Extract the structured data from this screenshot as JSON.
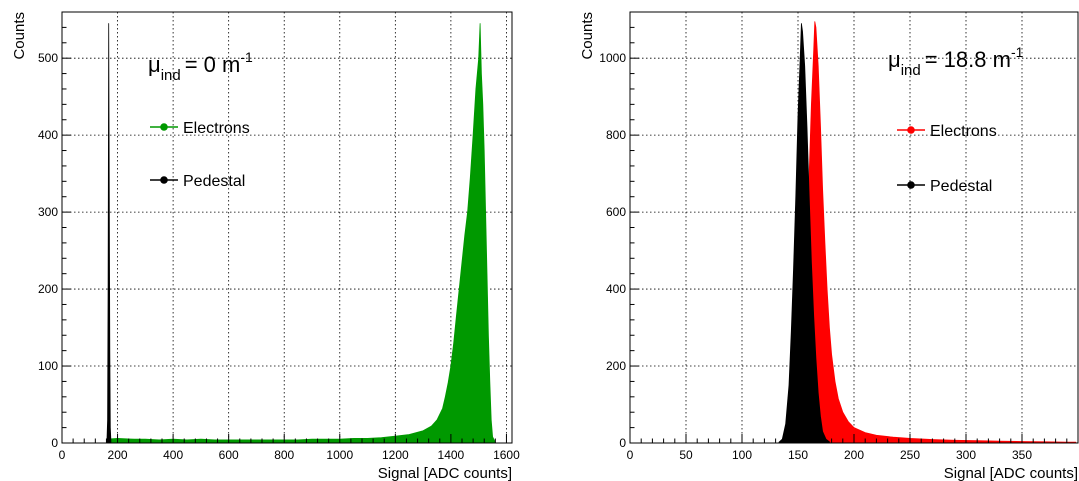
{
  "chart_data": [
    {
      "type": "histogram",
      "xlabel": "Signal [ADC counts]",
      "ylabel": "Counts",
      "xlim": [
        0,
        1620
      ],
      "ylim": [
        0,
        560
      ],
      "xticks": [
        0,
        200,
        400,
        600,
        800,
        1000,
        1200,
        1400,
        1600
      ],
      "yticks": [
        0,
        100,
        200,
        300,
        400,
        500
      ],
      "grid": true,
      "annotation": {
        "symbol": "μ",
        "subscript": "ind",
        "value": "= 0 m",
        "superscript": "-1"
      },
      "legend_position": "upper-center",
      "series": [
        {
          "name": "Electrons",
          "color": "#009900",
          "points": [
            [
              160,
              5
            ],
            [
              200,
              6
            ],
            [
              260,
              5
            ],
            [
              300,
              5
            ],
            [
              350,
              4
            ],
            [
              400,
              5
            ],
            [
              450,
              4
            ],
            [
              500,
              5
            ],
            [
              550,
              4
            ],
            [
              600,
              4
            ],
            [
              650,
              4
            ],
            [
              700,
              4
            ],
            [
              750,
              4
            ],
            [
              800,
              4
            ],
            [
              850,
              4
            ],
            [
              900,
              5
            ],
            [
              950,
              5
            ],
            [
              1000,
              5
            ],
            [
              1050,
              6
            ],
            [
              1100,
              6
            ],
            [
              1150,
              7
            ],
            [
              1200,
              9
            ],
            [
              1250,
              11
            ],
            [
              1300,
              16
            ],
            [
              1330,
              22
            ],
            [
              1350,
              30
            ],
            [
              1370,
              45
            ],
            [
              1380,
              60
            ],
            [
              1390,
              78
            ],
            [
              1400,
              100
            ],
            [
              1410,
              130
            ],
            [
              1420,
              165
            ],
            [
              1430,
              200
            ],
            [
              1440,
              235
            ],
            [
              1450,
              270
            ],
            [
              1460,
              300
            ],
            [
              1470,
              345
            ],
            [
              1480,
              400
            ],
            [
              1490,
              460
            ],
            [
              1500,
              500
            ],
            [
              1505,
              545
            ],
            [
              1510,
              480
            ],
            [
              1515,
              440
            ],
            [
              1520,
              380
            ],
            [
              1525,
              300
            ],
            [
              1530,
              220
            ],
            [
              1535,
              140
            ],
            [
              1540,
              80
            ],
            [
              1545,
              30
            ],
            [
              1550,
              8
            ],
            [
              1560,
              1
            ]
          ]
        },
        {
          "name": "Pedestal",
          "color": "#000000",
          "points": [
            [
              162,
              5
            ],
            [
              164,
              30
            ],
            [
              166,
              200
            ],
            [
              168,
              545
            ],
            [
              170,
              350
            ],
            [
              172,
              120
            ],
            [
              174,
              20
            ],
            [
              176,
              3
            ]
          ]
        }
      ]
    },
    {
      "type": "histogram",
      "xlabel": "Signal [ADC counts]",
      "ylabel": "Counts",
      "xlim": [
        0,
        400
      ],
      "ylim": [
        0,
        1120
      ],
      "xticks": [
        0,
        50,
        100,
        150,
        200,
        250,
        300,
        350
      ],
      "yticks": [
        0,
        200,
        400,
        600,
        800,
        1000
      ],
      "grid": true,
      "annotation": {
        "symbol": "μ",
        "subscript": "ind",
        "value": "= 18.8 m",
        "superscript": "-1"
      },
      "legend_position": "upper-right",
      "series": [
        {
          "name": "Electrons",
          "color": "#ff0000",
          "points": [
            [
              138,
              2
            ],
            [
              142,
              8
            ],
            [
              146,
              25
            ],
            [
              150,
              70
            ],
            [
              153,
              160
            ],
            [
              156,
              330
            ],
            [
              158,
              520
            ],
            [
              160,
              700
            ],
            [
              162,
              880
            ],
            [
              164,
              1020
            ],
            [
              165,
              1095
            ],
            [
              166,
              1080
            ],
            [
              168,
              980
            ],
            [
              170,
              830
            ],
            [
              172,
              660
            ],
            [
              174,
              520
            ],
            [
              176,
              400
            ],
            [
              178,
              300
            ],
            [
              180,
              230
            ],
            [
              183,
              160
            ],
            [
              186,
              115
            ],
            [
              190,
              80
            ],
            [
              195,
              55
            ],
            [
              200,
              40
            ],
            [
              210,
              27
            ],
            [
              220,
              20
            ],
            [
              235,
              15
            ],
            [
              250,
              12
            ],
            [
              270,
              9
            ],
            [
              290,
              7
            ],
            [
              310,
              6
            ],
            [
              330,
              5
            ],
            [
              350,
              4
            ],
            [
              370,
              3
            ],
            [
              390,
              2
            ],
            [
              398,
              2
            ]
          ]
        },
        {
          "name": "Pedestal",
          "color": "#000000",
          "points": [
            [
              133,
              2
            ],
            [
              136,
              10
            ],
            [
              139,
              50
            ],
            [
              142,
              150
            ],
            [
              144,
              290
            ],
            [
              146,
              450
            ],
            [
              148,
              640
            ],
            [
              150,
              850
            ],
            [
              152,
              1000
            ],
            [
              153,
              1090
            ],
            [
              154,
              1070
            ],
            [
              156,
              980
            ],
            [
              158,
              820
            ],
            [
              160,
              640
            ],
            [
              162,
              470
            ],
            [
              164,
              330
            ],
            [
              166,
              220
            ],
            [
              168,
              130
            ],
            [
              170,
              70
            ],
            [
              172,
              30
            ],
            [
              175,
              10
            ],
            [
              178,
              3
            ]
          ]
        }
      ]
    }
  ]
}
